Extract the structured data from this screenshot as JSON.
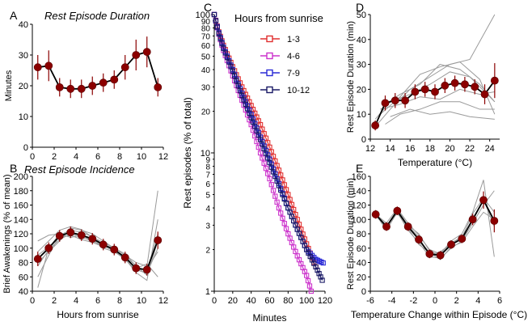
{
  "figure": {
    "panel_letters": [
      "A",
      "B",
      "C",
      "D",
      "E"
    ]
  },
  "chart_data": [
    {
      "panel": "A",
      "type": "line",
      "title": "Rest Episode Duration",
      "xlabel": "",
      "ylabel": "Minutes",
      "xlim": [
        0,
        12
      ],
      "ylim": [
        0,
        40
      ],
      "xticks": [
        0,
        2,
        4,
        6,
        8,
        10,
        12
      ],
      "yticks": [
        0,
        10,
        20,
        30,
        40
      ],
      "color": "#8b0000",
      "series": [
        {
          "x": [
            0.5,
            1.5,
            2.5,
            3.5,
            4.5,
            5.5,
            6.5,
            7.5,
            8.5,
            9.5,
            10.5,
            11.5
          ],
          "y": [
            26,
            26.5,
            19.5,
            19,
            19,
            20,
            21,
            22,
            26,
            30,
            31,
            19.5
          ],
          "err": [
            4,
            5,
            3,
            3,
            3,
            3,
            3,
            3,
            4,
            5,
            5,
            3
          ]
        }
      ]
    },
    {
      "panel": "B",
      "type": "line",
      "title": "Rest Episode Incidence",
      "xlabel": "Hours from sunrise",
      "ylabel": "Brief Awakenings (% of mean)",
      "xlim": [
        0,
        12
      ],
      "ylim": [
        40,
        200
      ],
      "xticks": [
        0,
        2,
        4,
        6,
        8,
        10,
        12
      ],
      "yticks": [
        40,
        60,
        80,
        100,
        120,
        140,
        160,
        180,
        200
      ],
      "color": "#8b0000",
      "series": [
        {
          "x": [
            0.5,
            1.5,
            2.5,
            3.5,
            4.5,
            5.5,
            6.5,
            7.5,
            8.5,
            9.5,
            10.5,
            11.5
          ],
          "y": [
            85,
            100,
            117,
            122,
            118,
            113,
            105,
            98,
            87,
            72,
            70,
            111
          ],
          "err": [
            10,
            8,
            8,
            8,
            8,
            8,
            8,
            8,
            8,
            8,
            8,
            12
          ]
        }
      ],
      "individual_lines": [
        {
          "x": [
            0.5,
            1.5,
            2.5,
            3.5,
            4.5,
            5.5,
            6.5,
            7.5,
            8.5,
            9.5,
            10.5,
            11.5
          ],
          "y": [
            95,
            110,
            125,
            130,
            126,
            115,
            108,
            100,
            90,
            80,
            75,
            180
          ]
        },
        {
          "x": [
            0.5,
            1.5,
            2.5,
            3.5,
            4.5,
            5.5,
            6.5,
            7.5,
            8.5,
            9.5,
            10.5,
            11.5
          ],
          "y": [
            80,
            95,
            110,
            128,
            125,
            120,
            110,
            100,
            92,
            75,
            68,
            120
          ]
        },
        {
          "x": [
            0.5,
            1.5,
            2.5,
            3.5,
            4.5,
            5.5,
            6.5,
            7.5,
            8.5,
            9.5,
            10.5,
            11.5
          ],
          "y": [
            110,
            118,
            120,
            115,
            118,
            112,
            100,
            95,
            85,
            68,
            72,
            95
          ]
        },
        {
          "x": [
            0.5,
            1.5,
            2.5,
            3.5,
            4.5,
            5.5,
            6.5,
            7.5,
            8.5,
            9.5,
            10.5,
            11.5
          ],
          "y": [
            75,
            98,
            112,
            120,
            115,
            110,
            103,
            96,
            84,
            70,
            65,
            100
          ]
        },
        {
          "x": [
            0.5,
            1.5,
            2.5,
            3.5,
            4.5,
            5.5,
            6.5,
            7.5,
            8.5,
            9.5,
            10.5,
            11.5
          ],
          "y": [
            60,
            90,
            118,
            125,
            122,
            116,
            105,
            98,
            88,
            76,
            62,
            110
          ]
        },
        {
          "x": [
            0.5,
            1.5,
            2.5,
            3.5,
            4.5,
            5.5,
            6.5,
            7.5,
            8.5,
            9.5,
            10.5,
            11.5
          ],
          "y": [
            90,
            102,
            115,
            118,
            112,
            108,
            102,
            99,
            86,
            72,
            78,
            60
          ]
        },
        {
          "x": [
            0.5,
            1.5,
            2.5,
            3.5,
            4.5,
            5.5,
            6.5,
            7.5,
            8.5,
            9.5,
            10.5,
            11.5
          ],
          "y": [
            45,
            100,
            120,
            120,
            118,
            110,
            104,
            97,
            85,
            66,
            55,
            140
          ]
        }
      ]
    },
    {
      "panel": "C",
      "type": "line",
      "title": "",
      "xlabel": "Minutes",
      "ylabel": "Rest episodes (% of total)",
      "xlim": [
        0,
        120
      ],
      "ylim": [
        1,
        100
      ],
      "yscale": "log",
      "xticks": [
        0,
        20,
        40,
        60,
        80,
        100,
        120
      ],
      "yticks_labeled": [
        1,
        2,
        3,
        4,
        5,
        6,
        7,
        8,
        9,
        10,
        20,
        30,
        40,
        50,
        60,
        70,
        80,
        90,
        100
      ],
      "legend_title": "Hours from sunrise",
      "legend_position": "top-right",
      "series": [
        {
          "name": "1-3",
          "color": "#e03030",
          "x": [
            0,
            5,
            10,
            20,
            30,
            40,
            50,
            60,
            70,
            80,
            90,
            100,
            110
          ],
          "y": [
            100,
            75,
            60,
            42,
            30,
            22,
            16,
            11,
            7.5,
            5,
            3.3,
            2.2,
            1.5
          ]
        },
        {
          "name": "4-6",
          "color": "#cc33cc",
          "x": [
            0,
            5,
            10,
            20,
            30,
            40,
            50,
            60,
            70,
            80,
            90,
            100,
            105
          ],
          "y": [
            100,
            72,
            55,
            36,
            24,
            16,
            10,
            6.5,
            4,
            2.6,
            1.8,
            1.3,
            1
          ]
        },
        {
          "name": "7-9",
          "color": "#2b2bd6",
          "x": [
            0,
            5,
            10,
            20,
            30,
            40,
            50,
            60,
            70,
            80,
            90,
            100,
            110,
            118
          ],
          "y": [
            100,
            74,
            58,
            40,
            27,
            19,
            13,
            9,
            6,
            4,
            2.8,
            2,
            1.7,
            1.6
          ]
        },
        {
          "name": "10-12",
          "color": "#1a1a66",
          "x": [
            0,
            5,
            10,
            20,
            30,
            40,
            50,
            60,
            70,
            80,
            90,
            100,
            110,
            117
          ],
          "y": [
            100,
            73,
            57,
            39,
            26,
            18,
            12.5,
            8.5,
            5.8,
            4,
            2.8,
            2,
            1.5,
            1.2
          ]
        }
      ]
    },
    {
      "panel": "D",
      "type": "line",
      "title": "",
      "xlabel": "Temperature (°C)",
      "ylabel": "Rest Episode Duration (min)",
      "xlim": [
        12,
        25
      ],
      "ylim": [
        0,
        50
      ],
      "xticks": [
        12,
        14,
        16,
        18,
        20,
        22,
        24
      ],
      "yticks": [
        0,
        10,
        20,
        30,
        40,
        50
      ],
      "color": "#8b0000",
      "series": [
        {
          "x": [
            12.5,
            13.5,
            14.5,
            15.5,
            16.5,
            17.5,
            18.5,
            19.5,
            20.5,
            21.5,
            22.5,
            23.5,
            24.5
          ],
          "y": [
            5.5,
            14.5,
            15.5,
            15.5,
            19,
            20,
            19,
            21.5,
            22.5,
            22,
            21,
            18,
            23.5
          ],
          "err": [
            2,
            3,
            3,
            3,
            3,
            3,
            3,
            3,
            3,
            3,
            3,
            4,
            7
          ]
        }
      ],
      "individual_lines": [
        {
          "x": [
            12.5,
            14,
            16,
            18,
            20,
            22,
            24.5
          ],
          "y": [
            5,
            12,
            20,
            25,
            30,
            32,
            50
          ]
        },
        {
          "x": [
            12.5,
            14,
            16,
            18,
            20,
            22,
            24.5
          ],
          "y": [
            8,
            15,
            18,
            22,
            27,
            25,
            15
          ]
        },
        {
          "x": [
            13,
            15,
            17,
            19,
            21,
            23,
            24.5
          ],
          "y": [
            10,
            17,
            26,
            29,
            31,
            24,
            10
          ]
        },
        {
          "x": [
            13,
            15,
            17,
            19,
            21,
            23,
            24.5
          ],
          "y": [
            12,
            14,
            17,
            16,
            20,
            18,
            19
          ]
        },
        {
          "x": [
            13.5,
            15,
            17,
            19,
            21,
            23,
            24.5
          ],
          "y": [
            6,
            10,
            12,
            15,
            15,
            12,
            12
          ]
        },
        {
          "x": [
            13.5,
            15,
            17,
            19,
            21,
            23,
            24.5
          ],
          "y": [
            14,
            18,
            22,
            30,
            28,
            22,
            15
          ]
        },
        {
          "x": [
            14,
            16,
            18,
            20,
            22,
            24.5
          ],
          "y": [
            9,
            12,
            10,
            11,
            9,
            8
          ]
        }
      ]
    },
    {
      "panel": "E",
      "type": "line",
      "title": "",
      "xlabel": "Temperature Change within Episode (°C)",
      "ylabel": "Rest Episode Duration (min)",
      "xlim": [
        -6,
        6
      ],
      "ylim": [
        0,
        160
      ],
      "xticks": [
        -6,
        -4,
        -2,
        0,
        2,
        4,
        6
      ],
      "yticks": [
        0,
        20,
        40,
        60,
        80,
        100,
        120,
        140,
        160
      ],
      "color": "#8b0000",
      "series": [
        {
          "x": [
            -5.5,
            -4.5,
            -3.5,
            -2.5,
            -1.5,
            -0.5,
            0.5,
            1.5,
            2.5,
            3.5,
            4.5,
            5.5
          ],
          "y": [
            107,
            90,
            112,
            90,
            72,
            52,
            50,
            65,
            73,
            100,
            127,
            98
          ],
          "err": [
            6,
            6,
            6,
            6,
            6,
            6,
            6,
            6,
            6,
            8,
            12,
            16
          ]
        }
      ],
      "individual_lines": [
        {
          "x": [
            -5.5,
            -4.5,
            -3.5,
            -2.5,
            -1.5,
            -0.5,
            0.5,
            1.5,
            2.5,
            3.5,
            4.5,
            5.5
          ],
          "y": [
            107,
            95,
            115,
            95,
            78,
            58,
            52,
            70,
            80,
            110,
            155,
            48
          ]
        },
        {
          "x": [
            -5.5,
            -4.5,
            -3.5,
            -2.5,
            -1.5,
            -0.5,
            0.5,
            1.5,
            2.5,
            3.5,
            4.5,
            5.5
          ],
          "y": [
            107,
            85,
            110,
            85,
            68,
            48,
            46,
            60,
            70,
            95,
            120,
            140
          ]
        },
        {
          "x": [
            -5.5,
            -4.5,
            -3.5,
            -2.5,
            -1.5,
            -0.5,
            0.5,
            1.5,
            2.5,
            3.5,
            4.5,
            5.5
          ],
          "y": [
            107,
            92,
            108,
            92,
            75,
            50,
            55,
            66,
            75,
            108,
            130,
            110
          ]
        },
        {
          "x": [
            -5.5,
            -4.5,
            -3.5,
            -2.5,
            -1.5,
            -0.5,
            0.5,
            1.5,
            2.5,
            3.5,
            4.5,
            5.5
          ],
          "y": [
            107,
            88,
            112,
            88,
            65,
            54,
            44,
            62,
            68,
            90,
            110,
            100
          ]
        },
        {
          "x": [
            -5.5,
            -4.5,
            -3.5,
            -2.5,
            -1.5,
            -0.5,
            0.5,
            1.5,
            2.5,
            3.5,
            4.5,
            5.5
          ],
          "y": [
            107,
            90,
            114,
            92,
            80,
            56,
            50,
            67,
            76,
            98,
            128,
            90
          ]
        }
      ]
    }
  ]
}
